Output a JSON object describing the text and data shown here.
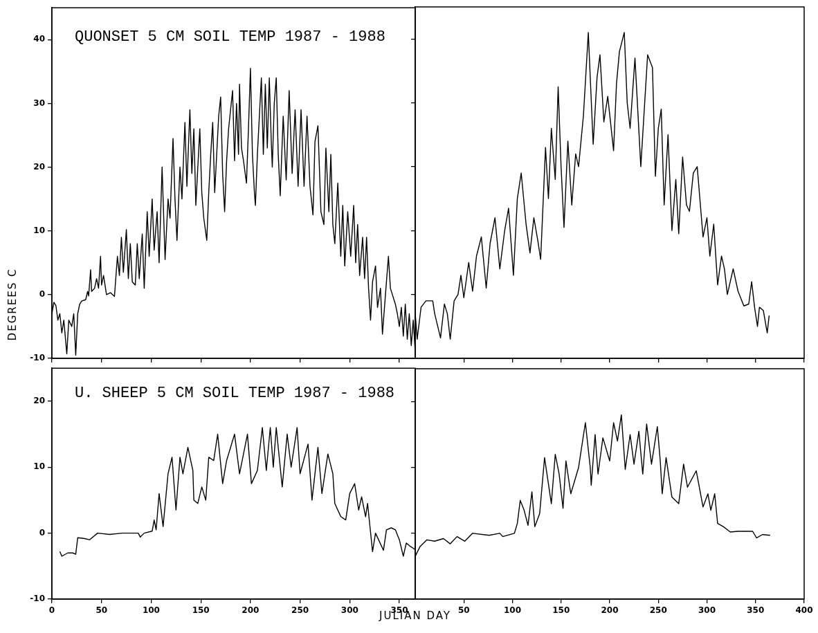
{
  "chart_data": [
    {
      "type": "line",
      "title": "QUONSET 5 CM SOIL TEMP 1987 - 1988",
      "ylabel": "DEGREES C",
      "xlim": [
        0,
        366
      ],
      "xticks": [
        0,
        50,
        100,
        150,
        200,
        250,
        300,
        350
      ],
      "ylim": [
        -10,
        45
      ],
      "yticks": [
        -10,
        0,
        10,
        20,
        30,
        40
      ],
      "tick_labels": "y",
      "series": [
        {
          "color": "#000000",
          "x": [
            0,
            2,
            4,
            6,
            8,
            10,
            12,
            15,
            17,
            20,
            22,
            24,
            26,
            28,
            30,
            34,
            36,
            37,
            39,
            40,
            43,
            45,
            47,
            49,
            50,
            52,
            55,
            59,
            63,
            66,
            68,
            70,
            72,
            75,
            77,
            79,
            81,
            84,
            86,
            88,
            91,
            93,
            96,
            98,
            101,
            103,
            106,
            108,
            111,
            114,
            117,
            119,
            122,
            124,
            126,
            129,
            131,
            134,
            136,
            139,
            141,
            143,
            145,
            147,
            149,
            151,
            153,
            156,
            158,
            160,
            162,
            164,
            166,
            168,
            170,
            172,
            174,
            176,
            178,
            180,
            182,
            184,
            186,
            188,
            189,
            191,
            193,
            196,
            198,
            200,
            202,
            204,
            205,
            207,
            209,
            211,
            213,
            215,
            217,
            219,
            221,
            222,
            224,
            226,
            228,
            230,
            233,
            236,
            239,
            242,
            245,
            248,
            251,
            254,
            257,
            260,
            263,
            265,
            268,
            271,
            274,
            276,
            279,
            281,
            283,
            285,
            288,
            291,
            293,
            295,
            298,
            301,
            304,
            306,
            308,
            310,
            313,
            315,
            317,
            319,
            321,
            323,
            326,
            328,
            331,
            333,
            336,
            339,
            341,
            343,
            346,
            348,
            350,
            352,
            354,
            356,
            358,
            360,
            362,
            364,
            366
          ],
          "values": [
            -3,
            -1.2,
            -1.7,
            -4,
            -3,
            -6,
            -4,
            -9.3,
            -4,
            -5,
            -3,
            -9.5,
            -3,
            -1.5,
            -1,
            -0.8,
            0.5,
            -0.2,
            3.9,
            0.5,
            1,
            2.5,
            1,
            6,
            1.5,
            3,
            0,
            0.3,
            -0.3,
            6,
            3,
            9,
            3.5,
            10.2,
            2.5,
            8,
            2,
            1.5,
            8,
            2.5,
            9.5,
            1,
            13,
            6,
            15,
            7,
            13,
            5,
            20,
            5.5,
            15,
            12,
            24.5,
            15,
            8.5,
            20,
            15,
            27,
            17,
            29,
            19,
            26,
            14,
            20,
            26,
            16,
            12,
            8.5,
            16,
            22,
            27,
            16,
            22,
            28,
            31,
            19,
            13,
            21,
            26,
            29,
            32,
            21,
            30,
            22,
            33,
            23,
            21,
            17.5,
            26,
            35.5,
            22,
            16,
            14,
            22,
            28,
            34,
            22,
            33,
            23,
            34,
            24,
            20,
            30,
            34,
            22,
            15.5,
            28,
            18,
            32,
            19,
            29,
            17,
            29,
            17,
            28,
            17,
            12.5,
            24,
            26.5,
            13,
            11,
            23,
            13,
            22,
            11,
            8,
            17.5,
            6,
            14,
            4.5,
            13,
            6,
            14,
            5,
            11,
            3,
            9,
            2.5,
            9,
            1,
            -4,
            2,
            4.5,
            -2,
            1,
            -6.2,
            0,
            6,
            1,
            0,
            -1.5,
            -3,
            -5,
            -2,
            -6.5,
            -1.5,
            -7,
            -3,
            -8,
            -4,
            -9
          ]
        }
      ]
    },
    {
      "type": "line",
      "xlim": [
        0,
        400
      ],
      "xticks": [
        50,
        100,
        150,
        200,
        250,
        300,
        350,
        400
      ],
      "ylim": [
        -10,
        45
      ],
      "yticks": [
        -10,
        0,
        10,
        20,
        30,
        40
      ],
      "tick_labels": false,
      "series": [
        {
          "color": "#000000",
          "x": [
            0,
            2,
            6,
            11,
            18,
            20,
            26,
            30,
            33,
            36,
            40,
            44,
            47,
            50,
            55,
            59,
            63,
            68,
            73,
            77,
            82,
            87,
            92,
            96,
            101,
            105,
            109,
            114,
            118,
            122,
            126,
            129,
            134,
            137,
            140,
            144,
            147,
            150,
            153,
            157,
            161,
            165,
            168,
            173,
            178,
            183,
            187,
            190,
            194,
            198,
            204,
            207,
            210,
            215,
            218,
            221,
            226,
            232,
            236,
            239,
            244,
            247,
            250,
            253,
            256,
            260,
            264,
            268,
            271,
            275,
            279,
            282,
            286,
            290,
            296,
            300,
            303,
            307,
            311,
            315,
            318,
            321,
            327,
            332,
            338,
            343,
            346,
            349,
            352,
            354,
            358,
            362,
            364
          ],
          "values": [
            -3,
            -7,
            -2,
            -1,
            -1,
            -3,
            -6.8,
            -1.5,
            -3,
            -7,
            -1,
            0,
            3,
            -0.5,
            5,
            0.5,
            6,
            9,
            1,
            8,
            12,
            4,
            10,
            13.5,
            3,
            15,
            19,
            11,
            6.5,
            12,
            8.5,
            5.5,
            23,
            15,
            26,
            18,
            32.5,
            20,
            10.5,
            24,
            14,
            22,
            20,
            28,
            41,
            23.5,
            34,
            37.5,
            27,
            31,
            22.5,
            33,
            38,
            41,
            30,
            26,
            37,
            20,
            30,
            37.5,
            35.5,
            18.5,
            26,
            29,
            14,
            25,
            10,
            18,
            9.5,
            21.5,
            14,
            13,
            19,
            20,
            9,
            12,
            6,
            11,
            1.5,
            6,
            4,
            0,
            4,
            0.5,
            -1.8,
            -1.5,
            2,
            -2,
            -5,
            -2,
            -2.5,
            -6,
            -3.3
          ]
        }
      ]
    },
    {
      "type": "line",
      "title": "U. SHEEP 5 CM SOIL TEMP 1987 - 1988",
      "xlabel": "JULIAN DAY",
      "xlim": [
        0,
        366
      ],
      "xticks": [
        0,
        50,
        100,
        150,
        200,
        250,
        300,
        350
      ],
      "ylim": [
        -10,
        25
      ],
      "yticks": [
        -10,
        0,
        10,
        20
      ],
      "series": [
        {
          "color": "#000000",
          "x": [
            8,
            10,
            16,
            21,
            24,
            26,
            32,
            38,
            46,
            58,
            71,
            87,
            89,
            93,
            101,
            103,
            105,
            108,
            112,
            117,
            121,
            125,
            129,
            132,
            137,
            142,
            143,
            147,
            151,
            155,
            158,
            163,
            167,
            172,
            176,
            184,
            189,
            197,
            201,
            207,
            212,
            216,
            220,
            223,
            226,
            232,
            237,
            241,
            247,
            250,
            258,
            262,
            268,
            272,
            278,
            283,
            285,
            291,
            296,
            300,
            305,
            309,
            312,
            316,
            318,
            323,
            326,
            334,
            337,
            342,
            346,
            350,
            354,
            357,
            361,
            366
          ],
          "values": [
            -2.8,
            -3.5,
            -3,
            -3,
            -3.2,
            -0.7,
            -0.8,
            -1,
            0,
            -0.2,
            0,
            0,
            -0.6,
            0,
            0.3,
            2,
            0.5,
            6,
            1,
            9,
            11.5,
            3.5,
            11.5,
            9,
            13,
            9.5,
            5,
            4.5,
            7,
            5,
            11.5,
            11,
            15,
            7.5,
            11,
            15,
            9,
            15,
            7.5,
            9.5,
            16,
            9.5,
            16,
            10,
            16,
            7,
            15,
            10,
            16,
            9,
            13.5,
            5,
            13,
            6,
            12,
            9,
            4.5,
            2.5,
            2,
            6,
            7.5,
            3.5,
            5.5,
            2.5,
            4.5,
            -2.8,
            0,
            -2.6,
            0.5,
            0.8,
            0.5,
            -1,
            -3.5,
            -1.5,
            -2,
            -2.5
          ]
        }
      ]
    },
    {
      "type": "line",
      "xlim": [
        0,
        400
      ],
      "xticks": [
        50,
        100,
        150,
        200,
        250,
        300,
        350,
        400
      ],
      "ylim": [
        -10,
        25
      ],
      "yticks": [
        -10,
        0,
        10,
        20
      ],
      "tick_labels": "x",
      "series": [
        {
          "color": "#000000",
          "x": [
            0,
            5,
            12,
            20,
            29,
            36,
            43,
            51,
            59,
            76,
            87,
            90,
            102,
            105,
            108,
            112,
            116,
            120,
            123,
            128,
            133,
            140,
            144,
            148,
            152,
            155,
            160,
            168,
            175,
            180,
            181,
            185,
            188,
            193,
            200,
            204,
            208,
            212,
            216,
            221,
            225,
            230,
            234,
            238,
            243,
            249,
            252,
            254,
            258,
            264,
            271,
            276,
            280,
            289,
            296,
            301,
            304,
            308,
            311,
            317,
            324,
            332,
            347,
            351,
            357,
            365
          ],
          "values": [
            -3.5,
            -2,
            -1,
            -1.2,
            -0.8,
            -1.6,
            -0.5,
            -1.2,
            0,
            -0.3,
            0,
            -0.5,
            0,
            1.5,
            5,
            3.5,
            1.2,
            6.3,
            1,
            3,
            11.5,
            4.5,
            12,
            9,
            3.8,
            11,
            6,
            10,
            16.8,
            10,
            7.3,
            15,
            9,
            14.5,
            11,
            16.8,
            14,
            18,
            9.7,
            15,
            10.5,
            15.5,
            9,
            16.6,
            10.5,
            16.2,
            11,
            6,
            11.5,
            5.5,
            4.5,
            10.5,
            7,
            9.5,
            4,
            6,
            3.5,
            6,
            1.5,
            1,
            0.2,
            0.3,
            0.3,
            -0.7,
            -0.2,
            -0.3
          ]
        }
      ]
    }
  ]
}
